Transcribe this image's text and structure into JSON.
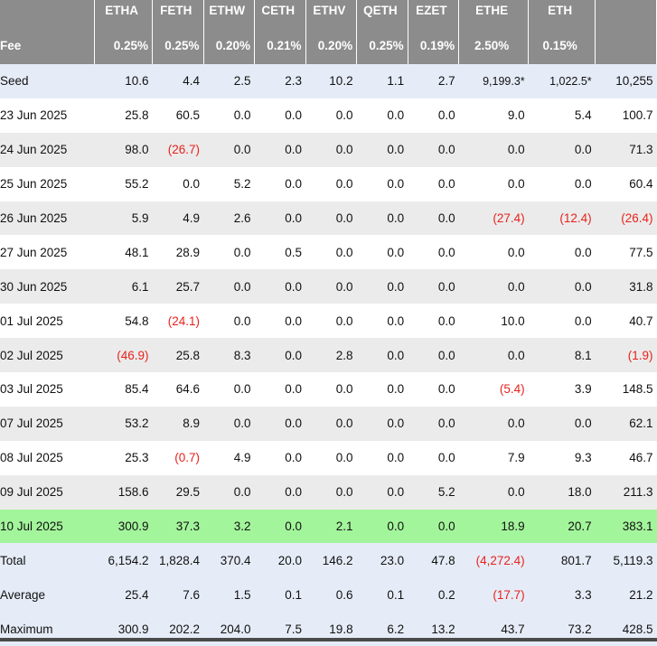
{
  "header": {
    "columns": [
      "",
      "ETHA",
      "FETH",
      "ETHW",
      "CETH",
      "ETHV",
      "QETH",
      "EZET",
      "ETHE",
      "ETH",
      ""
    ],
    "fee_label": "Fee",
    "fees": [
      "0.25%",
      "0.25%",
      "0.20%",
      "0.21%",
      "0.20%",
      "0.25%",
      "0.19%",
      "2.50%",
      "0.15%",
      ""
    ]
  },
  "rows": [
    {
      "label": "Seed",
      "values": [
        "10.6",
        "4.4",
        "2.5",
        "2.3",
        "10.2",
        "1.1",
        "2.7",
        "9,199.3*",
        "1,022.5*",
        "10,255"
      ],
      "neg": []
    },
    {
      "label": "23 Jun 2025",
      "values": [
        "25.8",
        "60.5",
        "0.0",
        "0.0",
        "0.0",
        "0.0",
        "0.0",
        "9.0",
        "5.4",
        "100.7"
      ],
      "neg": []
    },
    {
      "label": "24 Jun 2025",
      "values": [
        "98.0",
        "(26.7)",
        "0.0",
        "0.0",
        "0.0",
        "0.0",
        "0.0",
        "0.0",
        "0.0",
        "71.3"
      ],
      "neg": [
        1
      ]
    },
    {
      "label": "25 Jun 2025",
      "values": [
        "55.2",
        "0.0",
        "5.2",
        "0.0",
        "0.0",
        "0.0",
        "0.0",
        "0.0",
        "0.0",
        "60.4"
      ],
      "neg": []
    },
    {
      "label": "26 Jun 2025",
      "values": [
        "5.9",
        "4.9",
        "2.6",
        "0.0",
        "0.0",
        "0.0",
        "0.0",
        "(27.4)",
        "(12.4)",
        "(26.4)"
      ],
      "neg": [
        7,
        8,
        9
      ]
    },
    {
      "label": "27 Jun 2025",
      "values": [
        "48.1",
        "28.9",
        "0.0",
        "0.5",
        "0.0",
        "0.0",
        "0.0",
        "0.0",
        "0.0",
        "77.5"
      ],
      "neg": []
    },
    {
      "label": "30 Jun 2025",
      "values": [
        "6.1",
        "25.7",
        "0.0",
        "0.0",
        "0.0",
        "0.0",
        "0.0",
        "0.0",
        "0.0",
        "31.8"
      ],
      "neg": []
    },
    {
      "label": "01 Jul 2025",
      "values": [
        "54.8",
        "(24.1)",
        "0.0",
        "0.0",
        "0.0",
        "0.0",
        "0.0",
        "10.0",
        "0.0",
        "40.7"
      ],
      "neg": [
        1
      ]
    },
    {
      "label": "02 Jul 2025",
      "values": [
        "(46.9)",
        "25.8",
        "8.3",
        "0.0",
        "2.8",
        "0.0",
        "0.0",
        "0.0",
        "8.1",
        "(1.9)"
      ],
      "neg": [
        0,
        9
      ]
    },
    {
      "label": "03 Jul 2025",
      "values": [
        "85.4",
        "64.6",
        "0.0",
        "0.0",
        "0.0",
        "0.0",
        "0.0",
        "(5.4)",
        "3.9",
        "148.5"
      ],
      "neg": [
        7
      ]
    },
    {
      "label": "07 Jul 2025",
      "values": [
        "53.2",
        "8.9",
        "0.0",
        "0.0",
        "0.0",
        "0.0",
        "0.0",
        "0.0",
        "0.0",
        "62.1"
      ],
      "neg": []
    },
    {
      "label": "08 Jul 2025",
      "values": [
        "25.3",
        "(0.7)",
        "4.9",
        "0.0",
        "0.0",
        "0.0",
        "0.0",
        "7.9",
        "9.3",
        "46.7"
      ],
      "neg": [
        1
      ]
    },
    {
      "label": "09 Jul 2025",
      "values": [
        "158.6",
        "29.5",
        "0.0",
        "0.0",
        "0.0",
        "0.0",
        "5.2",
        "0.0",
        "18.0",
        "211.3"
      ],
      "neg": []
    },
    {
      "label": "10 Jul 2025",
      "values": [
        "300.9",
        "37.3",
        "3.2",
        "0.0",
        "2.1",
        "0.0",
        "0.0",
        "18.9",
        "20.7",
        "383.1"
      ],
      "neg": []
    },
    {
      "label": "Total",
      "values": [
        "6,154.2",
        "1,828.4",
        "370.4",
        "20.0",
        "146.2",
        "23.0",
        "47.8",
        "(4,272.4)",
        "801.7",
        "5,119.3"
      ],
      "neg": [
        7
      ]
    },
    {
      "label": "Average",
      "values": [
        "25.4",
        "7.6",
        "1.5",
        "0.1",
        "0.6",
        "0.1",
        "0.2",
        "(17.7)",
        "3.3",
        "21.2"
      ],
      "neg": [
        7
      ]
    },
    {
      "label": "Maximum",
      "values": [
        "300.9",
        "202.2",
        "204.0",
        "7.5",
        "19.8",
        "6.2",
        "13.2",
        "43.7",
        "73.2",
        "428.5"
      ],
      "neg": []
    }
  ],
  "row_styles": [
    "blue",
    "white",
    "grey",
    "white",
    "grey",
    "white",
    "grey",
    "white",
    "grey",
    "white",
    "grey",
    "white",
    "grey",
    "green",
    "blue",
    "blue",
    "blue"
  ],
  "colors": {
    "header_bg": "#8c8c8c",
    "negative": "#e8221b",
    "highlight_row": "#a3f59b",
    "summary_row": "#e6ecf7",
    "stripe": "#ebebeb"
  }
}
